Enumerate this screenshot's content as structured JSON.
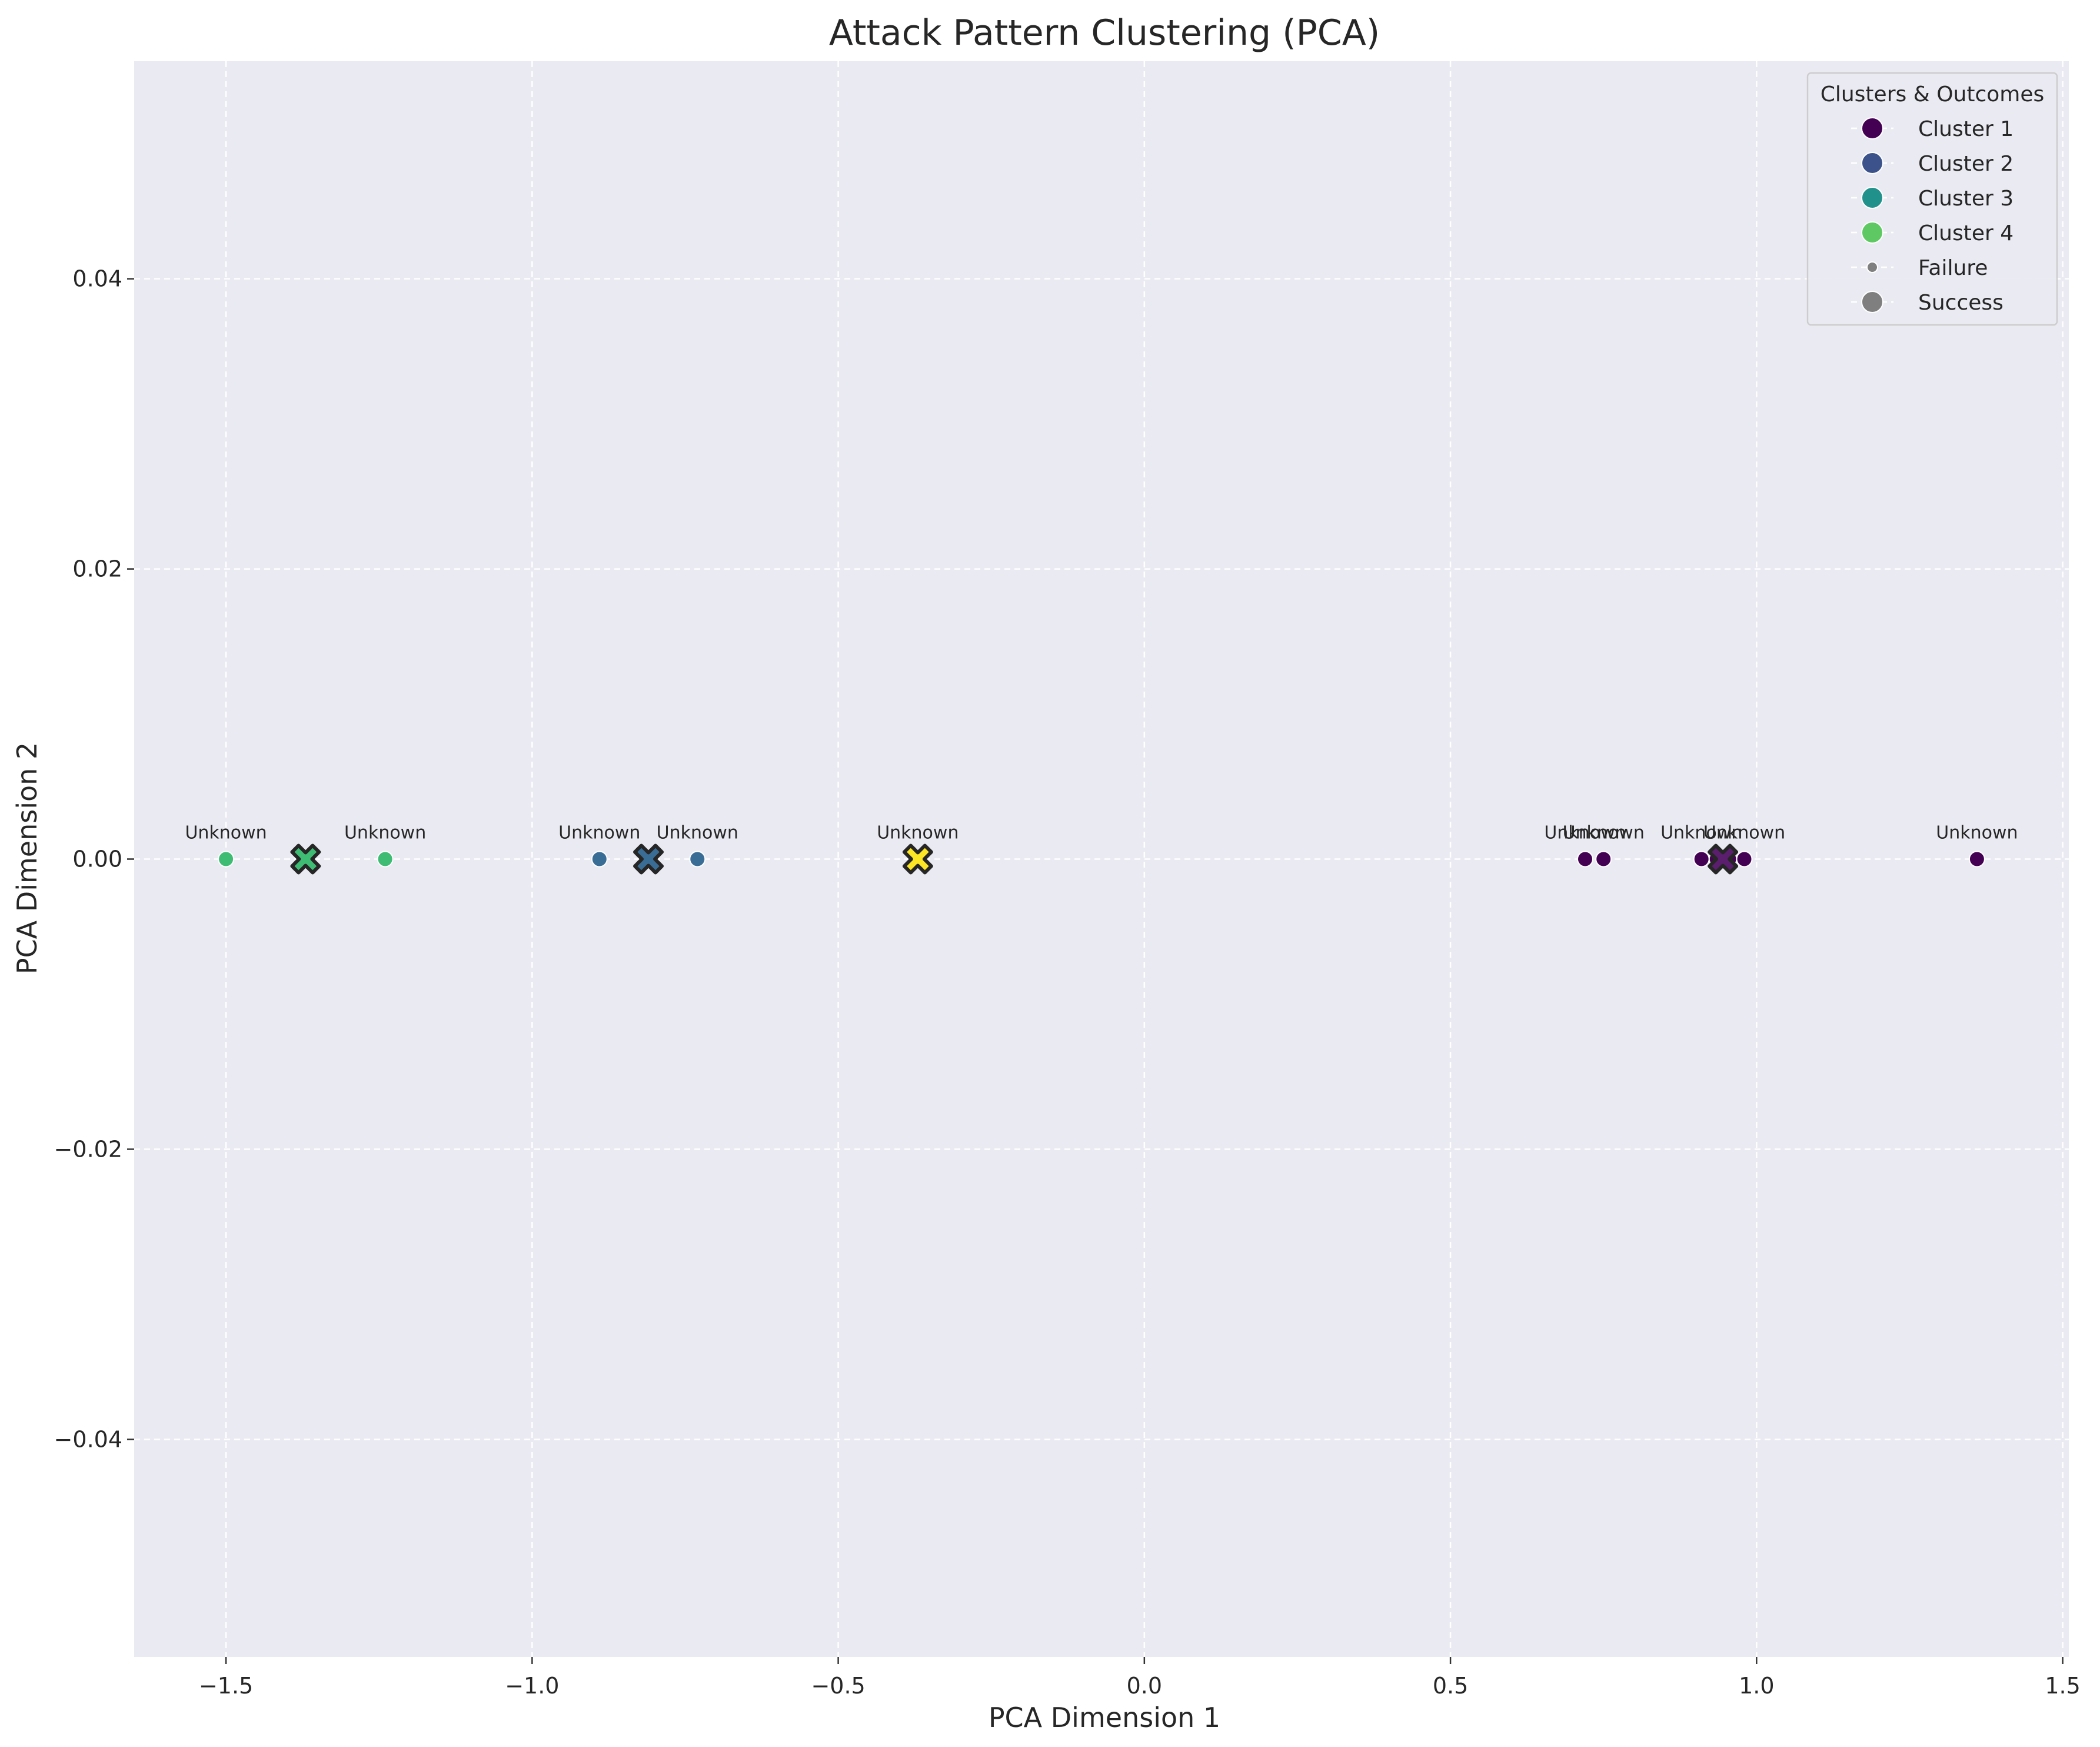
{
  "chart_data": {
    "type": "scatter",
    "title": "Attack Pattern Clustering (PCA)",
    "xlabel": "PCA Dimension 1",
    "ylabel": "PCA Dimension 2",
    "xlim": [
      -1.65,
      1.51
    ],
    "ylim": [
      -0.055,
      0.055
    ],
    "xticks": [
      -1.5,
      -1.0,
      -0.5,
      0.0,
      0.5,
      1.0,
      1.5
    ],
    "xtick_labels": [
      "−1.5",
      "−1.0",
      "−0.5",
      "0.0",
      "0.5",
      "1.0",
      "1.5"
    ],
    "yticks": [
      -0.04,
      -0.02,
      0.0,
      0.02,
      0.04
    ],
    "ytick_labels": [
      "−0.04",
      "−0.02",
      "0.00",
      "0.02",
      "0.04"
    ],
    "grid": true,
    "legend": {
      "title": "Clusters & Outcomes",
      "placement": "top-right",
      "entries": [
        {
          "label": "Cluster 1",
          "color": "#440154",
          "kind": "cluster"
        },
        {
          "label": "Cluster 2",
          "color": "#3b528b",
          "kind": "cluster"
        },
        {
          "label": "Cluster 3",
          "color": "#21918c",
          "kind": "cluster"
        },
        {
          "label": "Cluster 4",
          "color": "#5ec962",
          "kind": "cluster"
        },
        {
          "label": "Failure",
          "color": "#7f7f7f",
          "kind": "size-small"
        },
        {
          "label": "Success",
          "color": "#7f7f7f",
          "kind": "size-large"
        }
      ]
    },
    "points": [
      {
        "x": -1.5,
        "y": 0.0,
        "label": "Unknown",
        "color": "#3fbc73"
      },
      {
        "x": -1.24,
        "y": 0.0,
        "label": "Unknown",
        "color": "#3fbc73"
      },
      {
        "x": -0.89,
        "y": 0.0,
        "label": "Unknown",
        "color": "#3a6d96"
      },
      {
        "x": -0.73,
        "y": 0.0,
        "label": "Unknown",
        "color": "#3a6d96"
      },
      {
        "x": 0.72,
        "y": 0.0,
        "label": "Unknown",
        "color": "#440154"
      },
      {
        "x": 0.75,
        "y": 0.0,
        "label": "Unknown",
        "color": "#440154"
      },
      {
        "x": 0.91,
        "y": 0.0,
        "label": "Unknown",
        "color": "#440154"
      },
      {
        "x": 0.98,
        "y": 0.0,
        "label": "Unknown",
        "color": "#440154"
      },
      {
        "x": 1.36,
        "y": 0.0,
        "label": "Unknown",
        "color": "#440154"
      }
    ],
    "unlabeled_points": [
      {
        "x": 0.935,
        "y": 0.0,
        "color": "#440154"
      },
      {
        "x": 0.955,
        "y": 0.0,
        "color": "#440154"
      }
    ],
    "centroid_labels": [
      {
        "x": -0.37,
        "y": 0.0,
        "label": "Unknown"
      }
    ],
    "centroids": [
      {
        "x": -1.37,
        "y": 0.0,
        "color": "#3fbc73"
      },
      {
        "x": -0.81,
        "y": 0.0,
        "color": "#3a6d96"
      },
      {
        "x": -0.37,
        "y": 0.0,
        "color": "#fde725"
      },
      {
        "x": 0.945,
        "y": 0.0,
        "color": "#5b1e6e"
      }
    ]
  }
}
